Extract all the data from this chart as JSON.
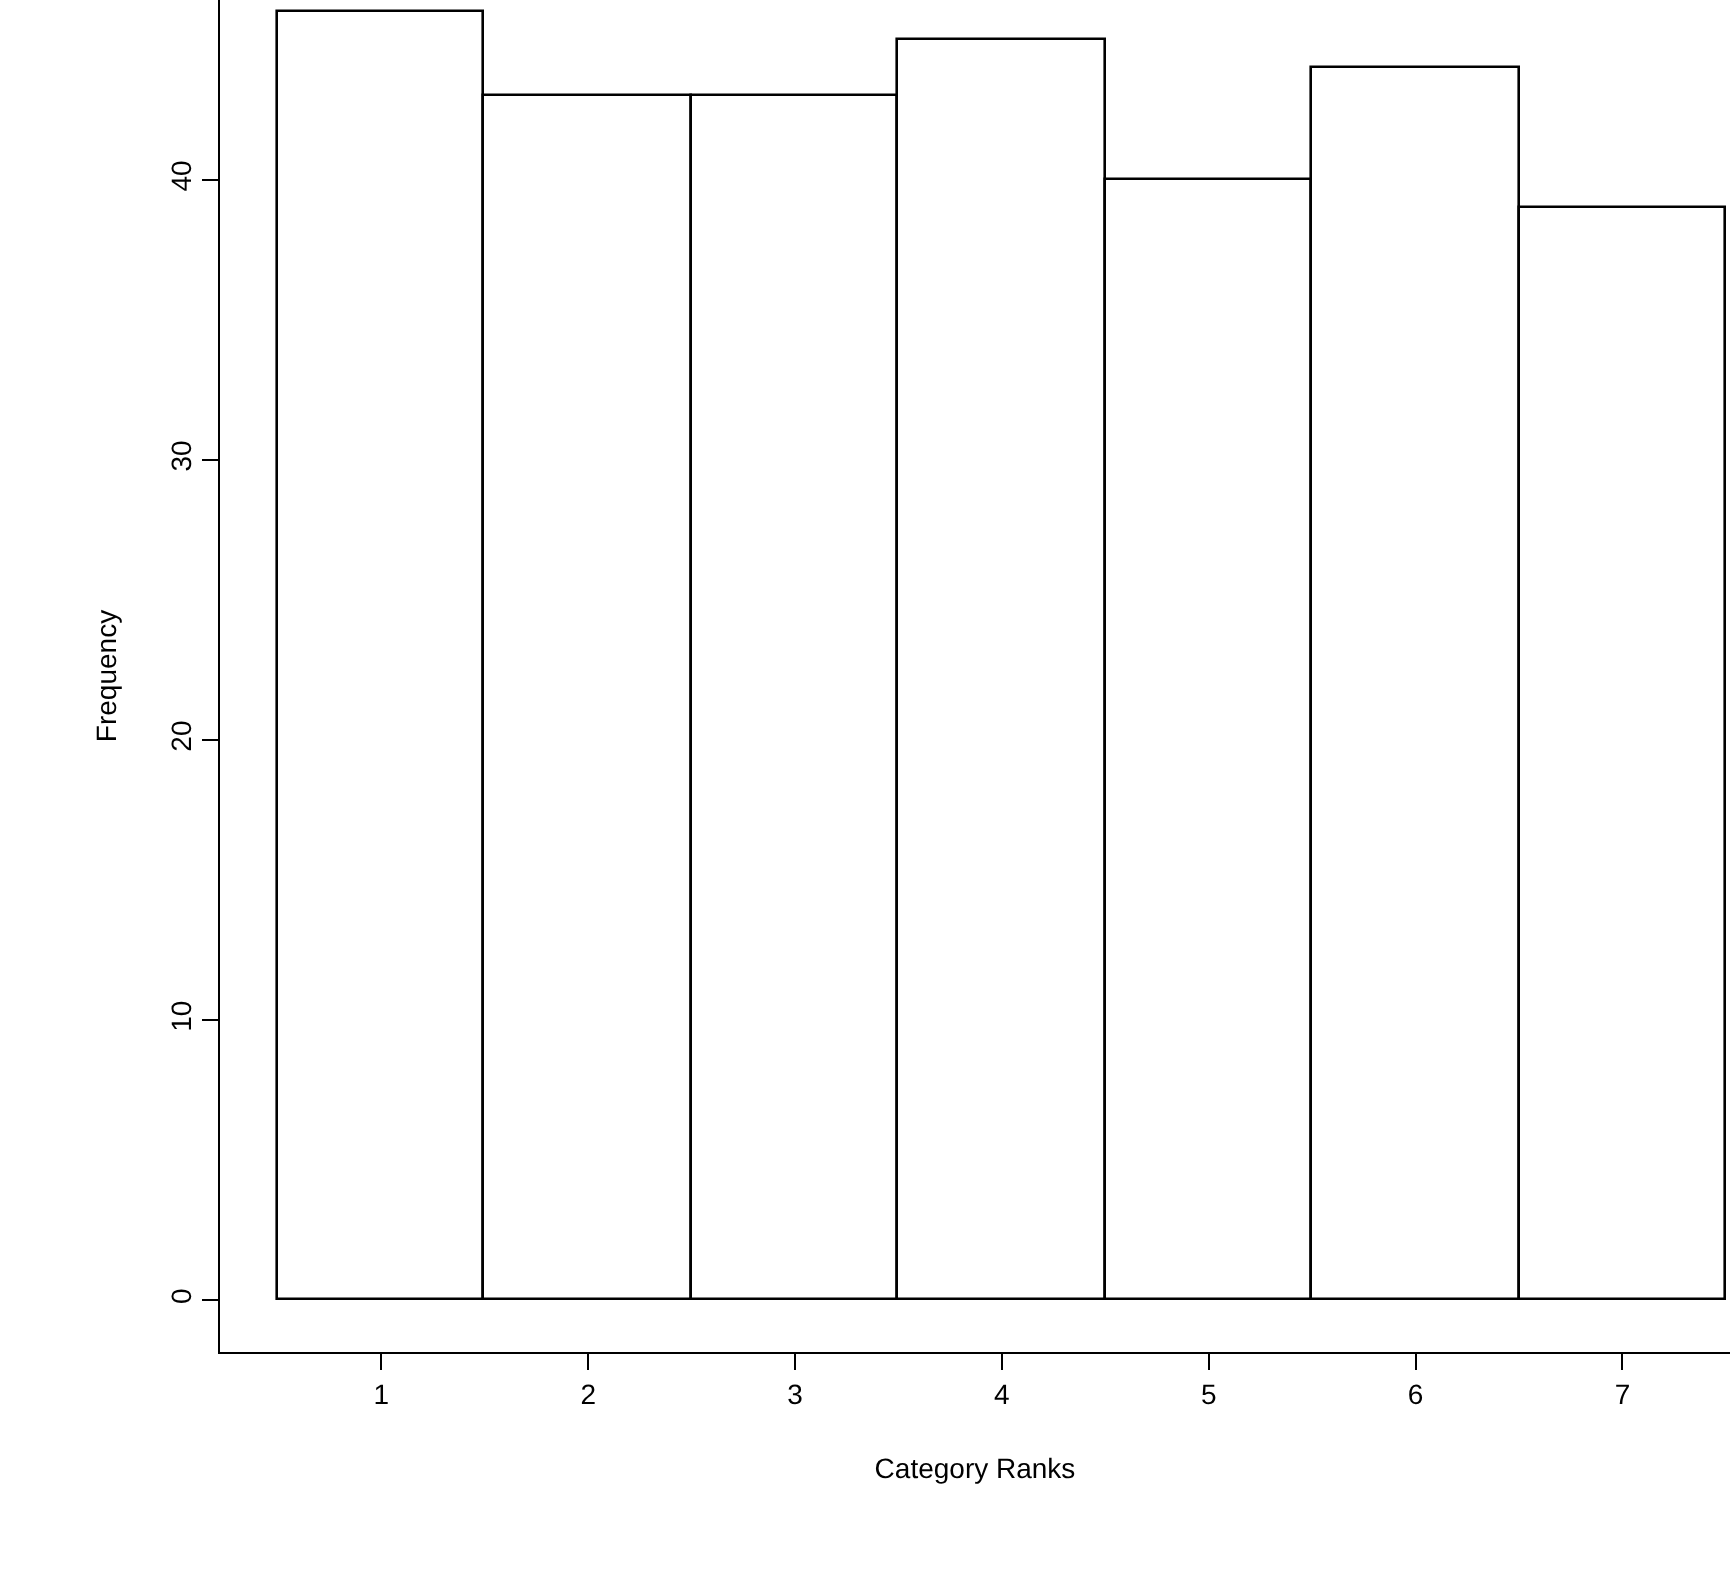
{
  "chart_data": {
    "type": "histogram",
    "xlabel": "Category Ranks",
    "ylabel": "Frequency",
    "bins": [
      0.5,
      1.5,
      2.5,
      3.5,
      4.5,
      5.5,
      6.5,
      7.5
    ],
    "values": [
      46,
      43,
      43,
      45,
      40,
      44,
      39
    ],
    "color": "#ffffff",
    "xlim": [
      0.22,
      7.52
    ],
    "ylim": [
      -1.84,
      46.43
    ],
    "xticks": [
      1,
      2,
      3,
      4,
      5,
      6,
      7
    ],
    "yticks": [
      0,
      10,
      20,
      30,
      40
    ]
  }
}
